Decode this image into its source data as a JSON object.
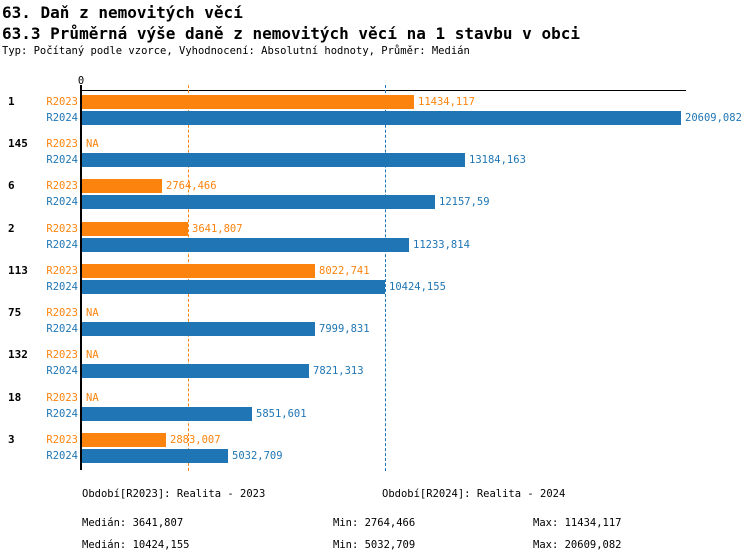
{
  "header": {
    "title_line1": "63. Daň z nemovitých věcí",
    "title_line2": "63.3 Průměrná výše daně z nemovitých věcí na 1 stavbu v obci",
    "subtitle": "Typ: Počítaný podle vzorce, Vyhodnocení: Absolutní hodnoty, Průměr: Medián"
  },
  "chart_data": {
    "type": "bar",
    "orientation": "horizontal",
    "title": "63.3 Průměrná výše daně z nemovitých věcí na 1 stavbu v obci",
    "categories": [
      "1",
      "145",
      "6",
      "2",
      "113",
      "75",
      "132",
      "18",
      "3"
    ],
    "series": [
      {
        "name": "R2023",
        "legend": "Období[R2023]: Realita - 2023",
        "color": "#fc840e",
        "values": [
          11434.117,
          null,
          2764.466,
          3641.807,
          8022.741,
          null,
          null,
          null,
          2883.007
        ],
        "labels": [
          "11434,117",
          "NA",
          "2764,466",
          "3641,807",
          "8022,741",
          "NA",
          "NA",
          "NA",
          "2883,007"
        ]
      },
      {
        "name": "R2024",
        "legend": "Období[R2024]: Realita - 2024",
        "color": "#2076b4",
        "values": [
          20609.082,
          13184.163,
          12157.59,
          11233.814,
          10424.155,
          7999.831,
          7821.313,
          5851.601,
          5032.709
        ],
        "labels": [
          "20609,082",
          "13184,163",
          "12157,59",
          "11233,814",
          "10424,155",
          "7999,831",
          "7821,313",
          "5851,601",
          "5032,709"
        ]
      }
    ],
    "axis": {
      "zero_label": "0",
      "min": 0,
      "max": 20781,
      "grid": "dashed-median-lines"
    },
    "median_gridlines": [
      {
        "series": "R2023",
        "value": 3641.807,
        "color": "#fc840e"
      },
      {
        "series": "R2024",
        "value": 10424.155,
        "color": "#2076b4"
      }
    ],
    "na_label": "NA",
    "legend_position": "bottom",
    "stats": {
      "r2023": {
        "median": 3641.807,
        "min": 2764.466,
        "max": 11434.117
      },
      "r2024": {
        "median": 10424.155,
        "min": 5032.709,
        "max": 20609.082
      }
    }
  },
  "stats_text": {
    "r2023": {
      "median": "Medián: 3641,807",
      "min": "Min: 2764,466",
      "max": "Max: 11434,117"
    },
    "r2024": {
      "median": "Medián: 10424,155",
      "min": "Min: 5032,709",
      "max": "Max: 20609,082"
    }
  }
}
